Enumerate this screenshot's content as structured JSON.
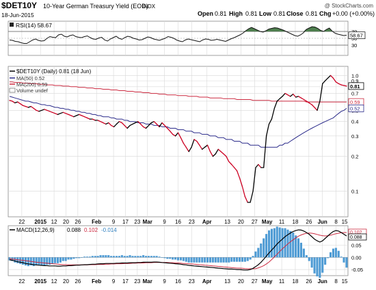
{
  "header": {
    "symbol": "$DET10Y",
    "description": "10-Year German Treasury Yield (EOD)",
    "exchange": "INDX",
    "date": "18-Jun-2015",
    "quote": {
      "open_label": "Open",
      "open": "0.81",
      "high_label": "High",
      "high": "0.81",
      "low_label": "Low",
      "low": "0.81",
      "close_label": "Close",
      "close": "0.81",
      "chg_label": "Chg",
      "chg": "+0.00 (+0.00%)"
    },
    "watermark": "@ StockCharts.com"
  },
  "legend": {
    "main": "$DET10Y (Daily) 0.81 (18 Jun)",
    "ma50": "MA(50) 0.52",
    "ma200": "MA(200) 0.59",
    "volume": "Volume undef"
  },
  "rsi_label": "RSI(14) 58.67",
  "macd_label": {
    "prefix": "MACD(12,26,9)",
    "v1": "0.088",
    "v2": "0.102",
    "v3": "-0.014"
  },
  "colors": {
    "price": "#000000",
    "price_down": "#cc0022",
    "ma50": "#2a2a8a",
    "ma200": "#cc2a40",
    "rsi_overbought_fill": "#4f7f4f",
    "rsi_oversold_fill": "#b06a6a",
    "histogram": "#4e9bd4",
    "grid": "#d8d8d8"
  },
  "chart_data": [
    {
      "panel": "rsi",
      "type": "line",
      "title": "RSI(14) 58.67",
      "ylim": [
        0,
        100
      ],
      "y_ticks": [
        "70",
        "50",
        "30"
      ],
      "last_value": "58.67",
      "overbought": 70,
      "oversold": 30,
      "values": [
        45,
        44,
        41,
        40,
        37,
        35,
        35,
        40,
        45,
        48,
        44,
        42,
        43,
        50,
        55,
        53,
        52,
        60,
        62,
        56,
        54,
        58,
        60,
        55,
        53,
        52,
        55,
        57,
        52,
        48,
        47,
        51,
        53,
        45,
        42,
        48,
        52,
        56,
        50,
        47,
        52,
        56,
        54,
        50,
        48,
        45,
        46,
        50,
        54,
        52,
        48,
        46,
        44,
        47,
        50,
        55,
        53,
        50,
        45,
        42,
        40,
        45,
        48,
        46,
        44,
        42,
        40,
        45,
        48,
        47,
        44,
        45,
        47,
        45,
        43,
        41,
        45,
        49,
        52,
        56,
        60,
        65,
        72,
        78,
        82,
        78,
        74,
        70,
        68,
        72,
        77,
        79,
        81,
        80,
        77,
        74,
        70,
        66,
        62,
        58,
        56,
        60,
        66,
        76,
        80,
        84,
        83,
        79,
        73,
        70,
        76,
        80,
        71,
        65,
        62,
        60,
        58,
        59
      ]
    },
    {
      "panel": "price",
      "type": "line",
      "title": "$DET10Y (Daily) 0.81 (18 Jun)",
      "scale": "log",
      "ylim": [
        0.06,
        1.2
      ],
      "y_ticks": [
        "1.0",
        "0.9",
        "0.8",
        "0.7",
        "0.6",
        "0.5",
        "0.4",
        "0.3",
        "0.2",
        "0.1"
      ],
      "last_value_labels": [
        "0.81",
        "0.59",
        "0.52"
      ],
      "x_tick_labels": [
        "22",
        "2015",
        "12",
        "20",
        "26",
        "Feb",
        "9",
        "17",
        "23",
        "Mar",
        "9",
        "16",
        "23",
        "Apr",
        "13",
        "20",
        "27",
        "May",
        "11",
        "18",
        "26",
        "Jun",
        "8",
        "15"
      ],
      "series": [
        {
          "name": "$DET10Y",
          "values": [
            0.61,
            0.6,
            0.58,
            0.59,
            0.57,
            0.55,
            0.54,
            0.53,
            0.54,
            0.52,
            0.5,
            0.49,
            0.5,
            0.51,
            0.5,
            0.49,
            0.48,
            0.47,
            0.46,
            0.47,
            0.48,
            0.47,
            0.46,
            0.45,
            0.44,
            0.45,
            0.46,
            0.45,
            0.44,
            0.43,
            0.42,
            0.42,
            0.41,
            0.41,
            0.4,
            0.39,
            0.38,
            0.39,
            0.37,
            0.36,
            0.38,
            0.4,
            0.39,
            0.37,
            0.35,
            0.37,
            0.38,
            0.39,
            0.4,
            0.38,
            0.36,
            0.35,
            0.37,
            0.39,
            0.4,
            0.38,
            0.36,
            0.39,
            0.37,
            0.35,
            0.33,
            0.31,
            0.3,
            0.32,
            0.29,
            0.26,
            0.24,
            0.22,
            0.24,
            0.28,
            0.27,
            0.25,
            0.23,
            0.24,
            0.25,
            0.22,
            0.2,
            0.21,
            0.23,
            0.22,
            0.21,
            0.2,
            0.18,
            0.17,
            0.16,
            0.15,
            0.13,
            0.11,
            0.09,
            0.08,
            0.08,
            0.1,
            0.16,
            0.17,
            0.16,
            0.16,
            0.3,
            0.38,
            0.42,
            0.52,
            0.6,
            0.63,
            0.66,
            0.7,
            0.68,
            0.66,
            0.69,
            0.65,
            0.66,
            0.64,
            0.62,
            0.6,
            0.58,
            0.56,
            0.53,
            0.5,
            0.6,
            0.85,
            0.9,
            0.95,
            1.0,
            0.95,
            0.88,
            0.85,
            0.83,
            0.82,
            0.81
          ]
        },
        {
          "name": "MA(50)",
          "values": [
            0.66,
            0.65,
            0.64,
            0.63,
            0.62,
            0.61,
            0.6,
            0.6,
            0.59,
            0.58,
            0.58,
            0.57,
            0.56,
            0.56,
            0.55,
            0.55,
            0.54,
            0.53,
            0.53,
            0.52,
            0.52,
            0.51,
            0.51,
            0.5,
            0.5,
            0.49,
            0.49,
            0.48,
            0.48,
            0.47,
            0.47,
            0.46,
            0.46,
            0.45,
            0.45,
            0.44,
            0.44,
            0.44,
            0.43,
            0.43,
            0.42,
            0.42,
            0.42,
            0.41,
            0.41,
            0.4,
            0.4,
            0.4,
            0.39,
            0.39,
            0.39,
            0.38,
            0.38,
            0.38,
            0.37,
            0.37,
            0.37,
            0.36,
            0.36,
            0.36,
            0.35,
            0.35,
            0.35,
            0.34,
            0.34,
            0.34,
            0.33,
            0.33,
            0.33,
            0.32,
            0.32,
            0.32,
            0.31,
            0.31,
            0.31,
            0.3,
            0.3,
            0.3,
            0.29,
            0.29,
            0.29,
            0.28,
            0.28,
            0.28,
            0.27,
            0.27,
            0.27,
            0.26,
            0.26,
            0.26,
            0.25,
            0.25,
            0.25,
            0.25,
            0.24,
            0.24,
            0.24,
            0.24,
            0.24,
            0.24,
            0.24,
            0.25,
            0.25,
            0.26,
            0.26,
            0.27,
            0.28,
            0.29,
            0.3,
            0.31,
            0.32,
            0.33,
            0.34,
            0.35,
            0.36,
            0.37,
            0.38,
            0.39,
            0.4,
            0.41,
            0.42,
            0.43,
            0.45,
            0.47,
            0.49,
            0.5,
            0.52
          ]
        },
        {
          "name": "MA(200)",
          "values": [
            0.88,
            0.88,
            0.87,
            0.87,
            0.87,
            0.86,
            0.86,
            0.86,
            0.85,
            0.85,
            0.85,
            0.84,
            0.84,
            0.84,
            0.83,
            0.83,
            0.83,
            0.82,
            0.82,
            0.82,
            0.81,
            0.81,
            0.81,
            0.8,
            0.8,
            0.8,
            0.79,
            0.79,
            0.79,
            0.78,
            0.78,
            0.78,
            0.77,
            0.77,
            0.77,
            0.76,
            0.76,
            0.76,
            0.75,
            0.75,
            0.75,
            0.74,
            0.74,
            0.74,
            0.73,
            0.73,
            0.73,
            0.72,
            0.72,
            0.72,
            0.71,
            0.71,
            0.71,
            0.7,
            0.7,
            0.7,
            0.69,
            0.69,
            0.69,
            0.68,
            0.68,
            0.68,
            0.68,
            0.67,
            0.67,
            0.67,
            0.67,
            0.66,
            0.66,
            0.66,
            0.66,
            0.65,
            0.65,
            0.65,
            0.65,
            0.64,
            0.64,
            0.64,
            0.64,
            0.64,
            0.63,
            0.63,
            0.63,
            0.63,
            0.63,
            0.62,
            0.62,
            0.62,
            0.62,
            0.62,
            0.62,
            0.61,
            0.61,
            0.61,
            0.61,
            0.61,
            0.61,
            0.61,
            0.6,
            0.6,
            0.6,
            0.6,
            0.6,
            0.6,
            0.6,
            0.6,
            0.6,
            0.6,
            0.6,
            0.6,
            0.6,
            0.59,
            0.59,
            0.59,
            0.59,
            0.59,
            0.59,
            0.59,
            0.59,
            0.59,
            0.59,
            0.59,
            0.59,
            0.59,
            0.59,
            0.59,
            0.59
          ]
        }
      ]
    },
    {
      "panel": "macd",
      "type": "line",
      "title": "MACD(12,26,9) 0.088, 0.102, -0.014",
      "ylim": [
        -0.075,
        0.13
      ],
      "y_ticks": [
        "0.05",
        "0.00",
        "-0.05"
      ],
      "last_value_labels": [
        "0.102",
        "0.088"
      ],
      "x_tick_labels": [
        "22",
        "2015",
        "12",
        "20",
        "26",
        "Feb",
        "9",
        "17",
        "23",
        "Mar",
        "9",
        "16",
        "23",
        "Apr",
        "13",
        "20",
        "27",
        "May",
        "11",
        "18",
        "26",
        "Jun",
        "8",
        "15"
      ],
      "series": [
        {
          "name": "MACD",
          "values": [
            -0.01,
            -0.012,
            -0.015,
            -0.018,
            -0.02,
            -0.022,
            -0.025,
            -0.027,
            -0.028,
            -0.03,
            -0.031,
            -0.032,
            -0.033,
            -0.034,
            -0.034,
            -0.035,
            -0.035,
            -0.035,
            -0.036,
            -0.036,
            -0.035,
            -0.035,
            -0.034,
            -0.034,
            -0.033,
            -0.032,
            -0.032,
            -0.031,
            -0.03,
            -0.03,
            -0.029,
            -0.028,
            -0.028,
            -0.027,
            -0.026,
            -0.026,
            -0.025,
            -0.025,
            -0.025,
            -0.025,
            -0.024,
            -0.024,
            -0.023,
            -0.023,
            -0.023,
            -0.022,
            -0.022,
            -0.022,
            -0.021,
            -0.021,
            -0.02,
            -0.02,
            -0.02,
            -0.02,
            -0.019,
            -0.019,
            -0.02,
            -0.021,
            -0.022,
            -0.023,
            -0.024,
            -0.025,
            -0.026,
            -0.027,
            -0.028,
            -0.03,
            -0.031,
            -0.033,
            -0.034,
            -0.035,
            -0.036,
            -0.037,
            -0.038,
            -0.039,
            -0.04,
            -0.041,
            -0.042,
            -0.043,
            -0.044,
            -0.045,
            -0.046,
            -0.047,
            -0.048,
            -0.048,
            -0.049,
            -0.05,
            -0.05,
            -0.051,
            -0.052,
            -0.052,
            -0.05,
            -0.045,
            -0.038,
            -0.03,
            -0.02,
            -0.008,
            0.005,
            0.018,
            0.03,
            0.042,
            0.055,
            0.065,
            0.075,
            0.085,
            0.093,
            0.1,
            0.106,
            0.11,
            0.113,
            0.112,
            0.108,
            0.102,
            0.095,
            0.085,
            0.075,
            0.068,
            0.063,
            0.068,
            0.078,
            0.088,
            0.098,
            0.106,
            0.11,
            0.108,
            0.102,
            0.095,
            0.088
          ]
        },
        {
          "name": "Signal",
          "values": [
            -0.006,
            -0.007,
            -0.008,
            -0.01,
            -0.011,
            -0.012,
            -0.014,
            -0.015,
            -0.017,
            -0.018,
            -0.02,
            -0.021,
            -0.022,
            -0.023,
            -0.024,
            -0.025,
            -0.026,
            -0.027,
            -0.028,
            -0.029,
            -0.03,
            -0.03,
            -0.031,
            -0.031,
            -0.031,
            -0.031,
            -0.031,
            -0.031,
            -0.031,
            -0.031,
            -0.03,
            -0.03,
            -0.03,
            -0.029,
            -0.029,
            -0.029,
            -0.028,
            -0.028,
            -0.027,
            -0.027,
            -0.026,
            -0.026,
            -0.026,
            -0.025,
            -0.025,
            -0.025,
            -0.024,
            -0.024,
            -0.023,
            -0.023,
            -0.023,
            -0.022,
            -0.022,
            -0.022,
            -0.021,
            -0.021,
            -0.021,
            -0.021,
            -0.021,
            -0.021,
            -0.022,
            -0.022,
            -0.023,
            -0.023,
            -0.024,
            -0.025,
            -0.025,
            -0.026,
            -0.027,
            -0.028,
            -0.029,
            -0.03,
            -0.031,
            -0.032,
            -0.033,
            -0.034,
            -0.035,
            -0.036,
            -0.037,
            -0.038,
            -0.039,
            -0.04,
            -0.041,
            -0.042,
            -0.043,
            -0.044,
            -0.044,
            -0.045,
            -0.046,
            -0.047,
            -0.047,
            -0.047,
            -0.046,
            -0.043,
            -0.039,
            -0.034,
            -0.027,
            -0.019,
            -0.009,
            0.002,
            0.013,
            0.024,
            0.035,
            0.045,
            0.055,
            0.064,
            0.072,
            0.08,
            0.087,
            0.092,
            0.096,
            0.099,
            0.1,
            0.099,
            0.097,
            0.094,
            0.091,
            0.089,
            0.088,
            0.089,
            0.091,
            0.094,
            0.097,
            0.099,
            0.101,
            0.102,
            0.102
          ]
        }
      ]
    }
  ]
}
